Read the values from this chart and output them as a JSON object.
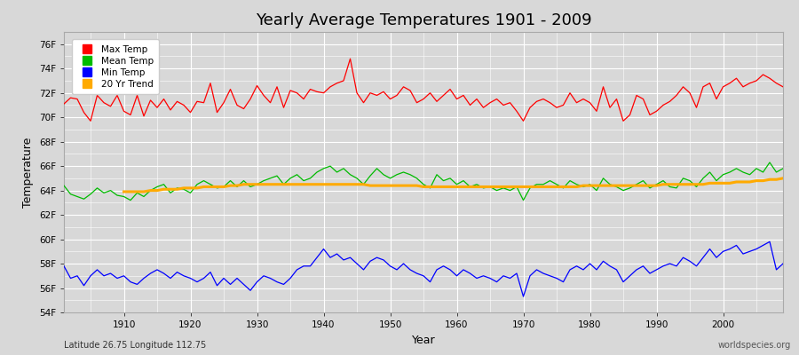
{
  "title": "Yearly Average Temperatures 1901 - 2009",
  "xlabel": "Year",
  "ylabel": "Temperature",
  "subtitle_left": "Latitude 26.75 Longitude 112.75",
  "subtitle_right": "worldspecies.org",
  "years": [
    1901,
    1902,
    1903,
    1904,
    1905,
    1906,
    1907,
    1908,
    1909,
    1910,
    1911,
    1912,
    1913,
    1914,
    1915,
    1916,
    1917,
    1918,
    1919,
    1920,
    1921,
    1922,
    1923,
    1924,
    1925,
    1926,
    1927,
    1928,
    1929,
    1930,
    1931,
    1932,
    1933,
    1934,
    1935,
    1936,
    1937,
    1938,
    1939,
    1940,
    1941,
    1942,
    1943,
    1944,
    1945,
    1946,
    1947,
    1948,
    1949,
    1950,
    1951,
    1952,
    1953,
    1954,
    1955,
    1956,
    1957,
    1958,
    1959,
    1960,
    1961,
    1962,
    1963,
    1964,
    1965,
    1966,
    1967,
    1968,
    1969,
    1970,
    1971,
    1972,
    1973,
    1974,
    1975,
    1976,
    1977,
    1978,
    1979,
    1980,
    1981,
    1982,
    1983,
    1984,
    1985,
    1986,
    1987,
    1988,
    1989,
    1990,
    1991,
    1992,
    1993,
    1994,
    1995,
    1996,
    1997,
    1998,
    1999,
    2000,
    2001,
    2002,
    2003,
    2004,
    2005,
    2006,
    2007,
    2008,
    2009
  ],
  "max_temp": [
    71.1,
    71.6,
    71.5,
    70.4,
    69.7,
    71.8,
    71.2,
    70.9,
    71.8,
    70.5,
    70.2,
    71.8,
    70.1,
    71.4,
    70.8,
    71.5,
    70.6,
    71.3,
    71.0,
    70.4,
    71.3,
    71.2,
    72.8,
    70.4,
    71.2,
    72.3,
    71.0,
    70.7,
    71.5,
    72.6,
    71.8,
    71.2,
    72.5,
    70.8,
    72.2,
    72.0,
    71.5,
    72.3,
    72.1,
    72.0,
    72.5,
    72.8,
    73.0,
    74.8,
    72.0,
    71.2,
    72.0,
    71.8,
    72.1,
    71.5,
    71.8,
    72.5,
    72.2,
    71.2,
    71.5,
    72.0,
    71.3,
    71.8,
    72.3,
    71.5,
    71.8,
    71.0,
    71.5,
    70.8,
    71.2,
    71.5,
    71.0,
    71.2,
    70.5,
    69.7,
    70.8,
    71.3,
    71.5,
    71.2,
    70.8,
    71.0,
    72.0,
    71.2,
    71.5,
    71.2,
    70.5,
    72.5,
    70.8,
    71.5,
    69.7,
    70.2,
    71.8,
    71.5,
    70.2,
    70.5,
    71.0,
    71.3,
    71.8,
    72.5,
    72.0,
    70.8,
    72.5,
    72.8,
    71.5,
    72.5,
    72.8,
    73.2,
    72.5,
    72.8,
    73.0,
    73.5,
    73.2,
    72.8,
    72.5
  ],
  "mean_temp": [
    64.4,
    63.7,
    63.5,
    63.3,
    63.7,
    64.2,
    63.8,
    64.0,
    63.6,
    63.5,
    63.2,
    63.8,
    63.5,
    64.0,
    64.3,
    64.5,
    63.8,
    64.2,
    64.1,
    63.8,
    64.5,
    64.8,
    64.5,
    64.2,
    64.3,
    64.8,
    64.3,
    64.8,
    64.3,
    64.5,
    64.8,
    65.0,
    65.2,
    64.5,
    65.0,
    65.3,
    64.8,
    65.0,
    65.5,
    65.8,
    66.0,
    65.5,
    65.8,
    65.3,
    65.0,
    64.5,
    65.2,
    65.8,
    65.3,
    65.0,
    65.3,
    65.5,
    65.3,
    65.0,
    64.5,
    64.2,
    65.3,
    64.8,
    65.0,
    64.5,
    64.8,
    64.3,
    64.5,
    64.2,
    64.3,
    64.0,
    64.2,
    64.0,
    64.3,
    63.2,
    64.2,
    64.5,
    64.5,
    64.8,
    64.5,
    64.2,
    64.8,
    64.5,
    64.3,
    64.5,
    64.0,
    65.0,
    64.5,
    64.3,
    64.0,
    64.2,
    64.5,
    64.8,
    64.2,
    64.5,
    64.8,
    64.3,
    64.2,
    65.0,
    64.8,
    64.3,
    65.0,
    65.5,
    64.8,
    65.3,
    65.5,
    65.8,
    65.5,
    65.3,
    65.8,
    65.5,
    66.3,
    65.5,
    65.8
  ],
  "min_temp": [
    57.8,
    56.8,
    57.0,
    56.2,
    57.0,
    57.5,
    57.0,
    57.2,
    56.8,
    57.0,
    56.5,
    56.3,
    56.8,
    57.2,
    57.5,
    57.2,
    56.8,
    57.3,
    57.0,
    56.8,
    56.5,
    56.8,
    57.3,
    56.2,
    56.8,
    56.3,
    56.8,
    56.3,
    55.8,
    56.5,
    57.0,
    56.8,
    56.5,
    56.3,
    56.8,
    57.5,
    57.8,
    57.8,
    58.5,
    59.2,
    58.5,
    58.8,
    58.3,
    58.5,
    58.0,
    57.5,
    58.2,
    58.5,
    58.3,
    57.8,
    57.5,
    58.0,
    57.5,
    57.2,
    57.0,
    56.5,
    57.5,
    57.8,
    57.5,
    57.0,
    57.5,
    57.2,
    56.8,
    57.0,
    56.8,
    56.5,
    57.0,
    56.8,
    57.2,
    55.3,
    57.0,
    57.5,
    57.2,
    57.0,
    56.8,
    56.5,
    57.5,
    57.8,
    57.5,
    58.0,
    57.5,
    58.2,
    57.8,
    57.5,
    56.5,
    57.0,
    57.5,
    57.8,
    57.2,
    57.5,
    57.8,
    58.0,
    57.8,
    58.5,
    58.2,
    57.8,
    58.5,
    59.2,
    58.5,
    59.0,
    59.2,
    59.5,
    58.8,
    59.0,
    59.2,
    59.5,
    59.8,
    57.5,
    58.0
  ],
  "trend_years": [
    1910,
    1911,
    1912,
    1913,
    1914,
    1915,
    1916,
    1917,
    1918,
    1919,
    1920,
    1921,
    1922,
    1923,
    1924,
    1925,
    1926,
    1927,
    1928,
    1929,
    1930,
    1931,
    1932,
    1933,
    1934,
    1935,
    1936,
    1937,
    1938,
    1939,
    1940,
    1941,
    1942,
    1943,
    1944,
    1945,
    1946,
    1947,
    1948,
    1949,
    1950,
    1951,
    1952,
    1953,
    1954,
    1955,
    1956,
    1957,
    1958,
    1959,
    1960,
    1961,
    1962,
    1963,
    1964,
    1965,
    1966,
    1967,
    1968,
    1969,
    1970,
    1971,
    1972,
    1973,
    1974,
    1975,
    1976,
    1977,
    1978,
    1979,
    1980,
    1981,
    1982,
    1983,
    1984,
    1985,
    1986,
    1987,
    1988,
    1989,
    1990,
    1991,
    1992,
    1993,
    1994,
    1995,
    1996,
    1997,
    1998,
    1999,
    2000,
    2001,
    2002,
    2003,
    2004,
    2005,
    2006,
    2007,
    2008,
    2009
  ],
  "trend_vals": [
    63.9,
    63.9,
    63.9,
    63.9,
    64.0,
    64.0,
    64.1,
    64.1,
    64.1,
    64.2,
    64.2,
    64.2,
    64.3,
    64.3,
    64.3,
    64.3,
    64.4,
    64.4,
    64.5,
    64.5,
    64.5,
    64.5,
    64.5,
    64.5,
    64.5,
    64.5,
    64.5,
    64.5,
    64.5,
    64.5,
    64.5,
    64.5,
    64.5,
    64.5,
    64.5,
    64.5,
    64.5,
    64.4,
    64.4,
    64.4,
    64.4,
    64.4,
    64.4,
    64.4,
    64.4,
    64.3,
    64.3,
    64.3,
    64.3,
    64.3,
    64.3,
    64.3,
    64.3,
    64.3,
    64.3,
    64.3,
    64.3,
    64.3,
    64.3,
    64.3,
    64.3,
    64.3,
    64.3,
    64.3,
    64.3,
    64.3,
    64.3,
    64.3,
    64.3,
    64.4,
    64.4,
    64.4,
    64.4,
    64.4,
    64.4,
    64.4,
    64.4,
    64.4,
    64.4,
    64.4,
    64.4,
    64.5,
    64.5,
    64.5,
    64.5,
    64.5,
    64.5,
    64.5,
    64.6,
    64.6,
    64.6,
    64.6,
    64.7,
    64.7,
    64.7,
    64.8,
    64.8,
    64.9,
    64.9,
    65.0
  ],
  "colors": {
    "max": "#ff0000",
    "mean": "#00bb00",
    "min": "#0000ff",
    "trend": "#ffaa00",
    "fig_bg": "#d8d8d8",
    "plot_bg": "#d8d8d8",
    "grid": "#ffffff",
    "text": "#000000",
    "spine": "#aaaaaa"
  },
  "ylim": [
    54,
    77
  ],
  "yticks": [
    54,
    56,
    58,
    60,
    62,
    64,
    66,
    68,
    70,
    72,
    74,
    76
  ],
  "ytick_labels": [
    "54F",
    "56F",
    "58F",
    "60F",
    "62F",
    "64F",
    "66F",
    "68F",
    "70F",
    "72F",
    "74F",
    "76F"
  ],
  "xticks": [
    1910,
    1920,
    1930,
    1940,
    1950,
    1960,
    1970,
    1980,
    1990,
    2000
  ],
  "xlim": [
    1901,
    2009
  ],
  "legend_items": [
    {
      "label": "Max Temp",
      "color": "#ff0000"
    },
    {
      "label": "Mean Temp",
      "color": "#00bb00"
    },
    {
      "label": "Min Temp",
      "color": "#0000ff"
    },
    {
      "label": "20 Yr Trend",
      "color": "#ffaa00"
    }
  ]
}
